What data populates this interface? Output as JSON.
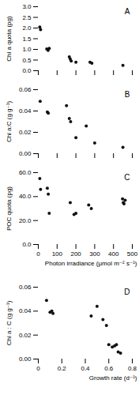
{
  "chart_data": [
    {
      "type": "scatter",
      "title": "A",
      "ylabel": "Chl a quota (pg)",
      "color": "#111111",
      "xlim": [
        0,
        500
      ],
      "ylim": [
        0.0,
        3.0
      ],
      "xticks": [
        0,
        100,
        200,
        300,
        400,
        500
      ],
      "yticks": [
        {
          "value": 0.0,
          "label": "0.0"
        },
        0.5,
        {
          "value": 1.0,
          "label": "1.0"
        },
        1.5,
        {
          "value": 2.0,
          "label": "2.0"
        },
        2.5,
        {
          "value": 3.0,
          "label": "3.0"
        }
      ],
      "tick_labels": "y",
      "grid": false,
      "x": [
        8,
        12,
        45,
        52,
        58,
        165,
        170,
        175,
        200,
        275,
        285,
        450
      ],
      "values": [
        2.05,
        1.93,
        1.02,
        0.95,
        1.05,
        0.65,
        0.55,
        0.45,
        0.4,
        0.4,
        0.35,
        0.25
      ]
    },
    {
      "type": "scatter",
      "title": "B",
      "ylabel": "Chl a:C (g g⁻¹)",
      "color": "#111111",
      "xlim": [
        0,
        500
      ],
      "ylim": [
        0.0,
        0.06
      ],
      "xticks": [
        0,
        100,
        200,
        300,
        400,
        500
      ],
      "yticks": [
        {
          "value": 0.0,
          "label": "0.00"
        },
        0.02,
        0.04,
        0.06
      ],
      "tick_labels": "y",
      "grid": false,
      "x": [
        10,
        48,
        53,
        150,
        165,
        172,
        200,
        255,
        300,
        450
      ],
      "values": [
        0.049,
        0.039,
        0.038,
        0.045,
        0.033,
        0.03,
        0.015,
        0.026,
        0.01,
        0.006
      ]
    },
    {
      "type": "scatter",
      "title": "C",
      "xlabel": "Photon irradiance (μmol m⁻² s⁻¹)",
      "ylabel": "POC quota (pg)",
      "color": "#111111",
      "xlim": [
        0,
        500
      ],
      "ylim": [
        0.0,
        60.0
      ],
      "xticks": [
        0,
        100,
        200,
        300,
        400,
        500
      ],
      "yticks": [
        {
          "value": 0.0,
          "label": "0.0"
        },
        {
          "value": 20.0,
          "label": "20.0"
        },
        {
          "value": 40.0,
          "label": "40.0"
        },
        {
          "value": 60.0,
          "label": "60.0"
        }
      ],
      "grid": false,
      "x": [
        8,
        12,
        48,
        53,
        58,
        170,
        190,
        200,
        268,
        282,
        448,
        452,
        456,
        462
      ],
      "values": [
        55,
        46,
        47,
        42,
        26,
        35,
        25,
        26,
        33,
        30,
        38,
        35,
        34,
        37
      ]
    },
    {
      "type": "scatter",
      "title": "D",
      "xlabel": "Growth rate (d⁻¹)",
      "ylabel": "Chl a : C (g g⁻¹)",
      "color": "#111111",
      "xlim": [
        0,
        0.8
      ],
      "ylim": [
        0.0,
        0.06
      ],
      "xticks": [
        0,
        0.2,
        0.4,
        0.6,
        0.8
      ],
      "yticks": [
        {
          "value": 0.0,
          "label": "0.00"
        },
        0.02,
        0.04,
        0.06
      ],
      "grid": false,
      "x": [
        0.07,
        0.1,
        0.115,
        0.125,
        0.45,
        0.5,
        0.55,
        0.58,
        0.6,
        0.63,
        0.65,
        0.665,
        0.68,
        0.7
      ],
      "values": [
        0.049,
        0.039,
        0.04,
        0.038,
        0.036,
        0.044,
        0.033,
        0.028,
        0.012,
        0.01,
        0.011,
        0.012,
        0.006,
        0.005
      ]
    }
  ]
}
